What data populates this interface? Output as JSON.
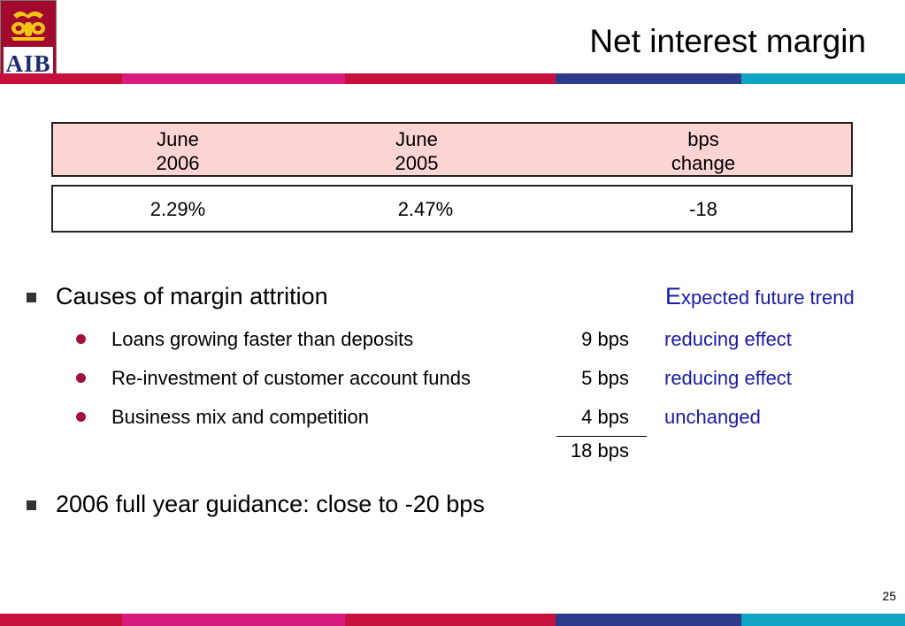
{
  "logo": {
    "text": "AIB"
  },
  "title": "Net interest margin",
  "stripe_colors": [
    "#c8103e",
    "#d81b7f",
    "#c8103e",
    "#2e3a8c",
    "#0fa3c4"
  ],
  "table": {
    "headers": [
      {
        "line1": "June",
        "line2": "2006"
      },
      {
        "line1": "June",
        "line2": "2005"
      },
      {
        "line1": "bps",
        "line2": "change"
      }
    ],
    "values": [
      "2.29%",
      "2.47%",
      "-18"
    ]
  },
  "causes": {
    "heading": "Causes of margin attrition",
    "trend_heading_first": "E",
    "trend_heading_rest": "xpected future trend",
    "items": [
      {
        "label": "Loans growing faster than deposits",
        "bps": "9 bps",
        "trend": "reducing effect"
      },
      {
        "label": "Re-investment of customer account funds",
        "bps": "5 bps",
        "trend": "reducing effect"
      },
      {
        "label": "Business mix and competition",
        "bps": "4 bps",
        "trend": "unchanged"
      }
    ],
    "total": "18 bps"
  },
  "guidance": "2006 full year guidance: close to -20 bps",
  "page_number": "25"
}
